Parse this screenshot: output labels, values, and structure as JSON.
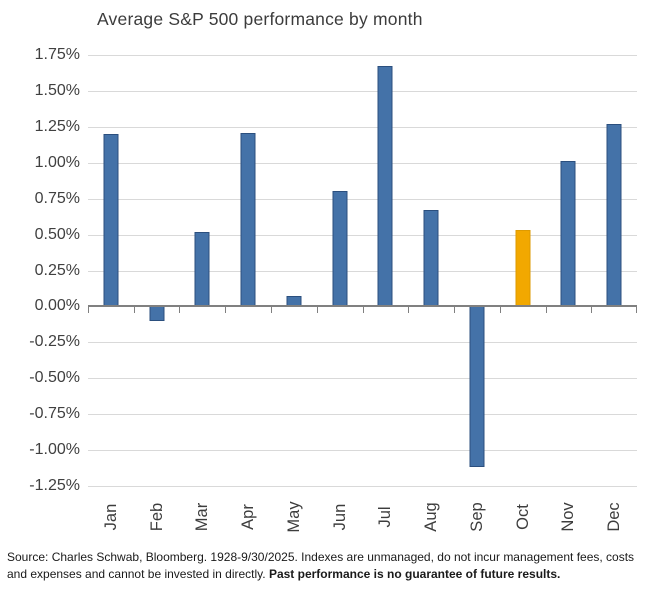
{
  "title": "Average S&P 500 performance by month",
  "source": {
    "normal": "Source: Charles Schwab, Bloomberg. 1928-9/30/2025. Indexes are unmanaged, do not incur management fees, costs and expenses and cannot be invested in directly. ",
    "bold": "Past performance is no guarantee of future results."
  },
  "chart_data": {
    "type": "bar",
    "title": "Average S&P 500 performance by month",
    "categories": [
      "Jan",
      "Feb",
      "Mar",
      "Apr",
      "May",
      "Jun",
      "Jul",
      "Aug",
      "Sep",
      "Oct",
      "Nov",
      "Dec"
    ],
    "values": [
      1.2,
      -0.1,
      0.52,
      1.21,
      0.07,
      0.8,
      1.67,
      0.67,
      -1.12,
      0.53,
      1.01,
      1.27
    ],
    "unit": "%",
    "highlight_category": "Oct",
    "xlabel": "",
    "ylabel": "",
    "ylim": [
      -1.25,
      1.75
    ],
    "ytick_step": 0.25,
    "ytick_labels": [
      "1.75%",
      "1.50%",
      "1.25%",
      "1.00%",
      "0.75%",
      "0.50%",
      "0.25%",
      "0.00%",
      "-0.25%",
      "-0.50%",
      "-0.75%",
      "-1.00%",
      "-1.25%"
    ],
    "grid": true,
    "legend": "none",
    "colors": {
      "bar_fill": "#4472A8",
      "bar_border": "#2B4F7E",
      "highlight_fill": "#F2A800",
      "highlight_border": "#DE9A00",
      "gridline": "#D9D9D9",
      "axis": "#808080",
      "title_text": "#3C3C3C",
      "axis_text": "#404040"
    }
  }
}
